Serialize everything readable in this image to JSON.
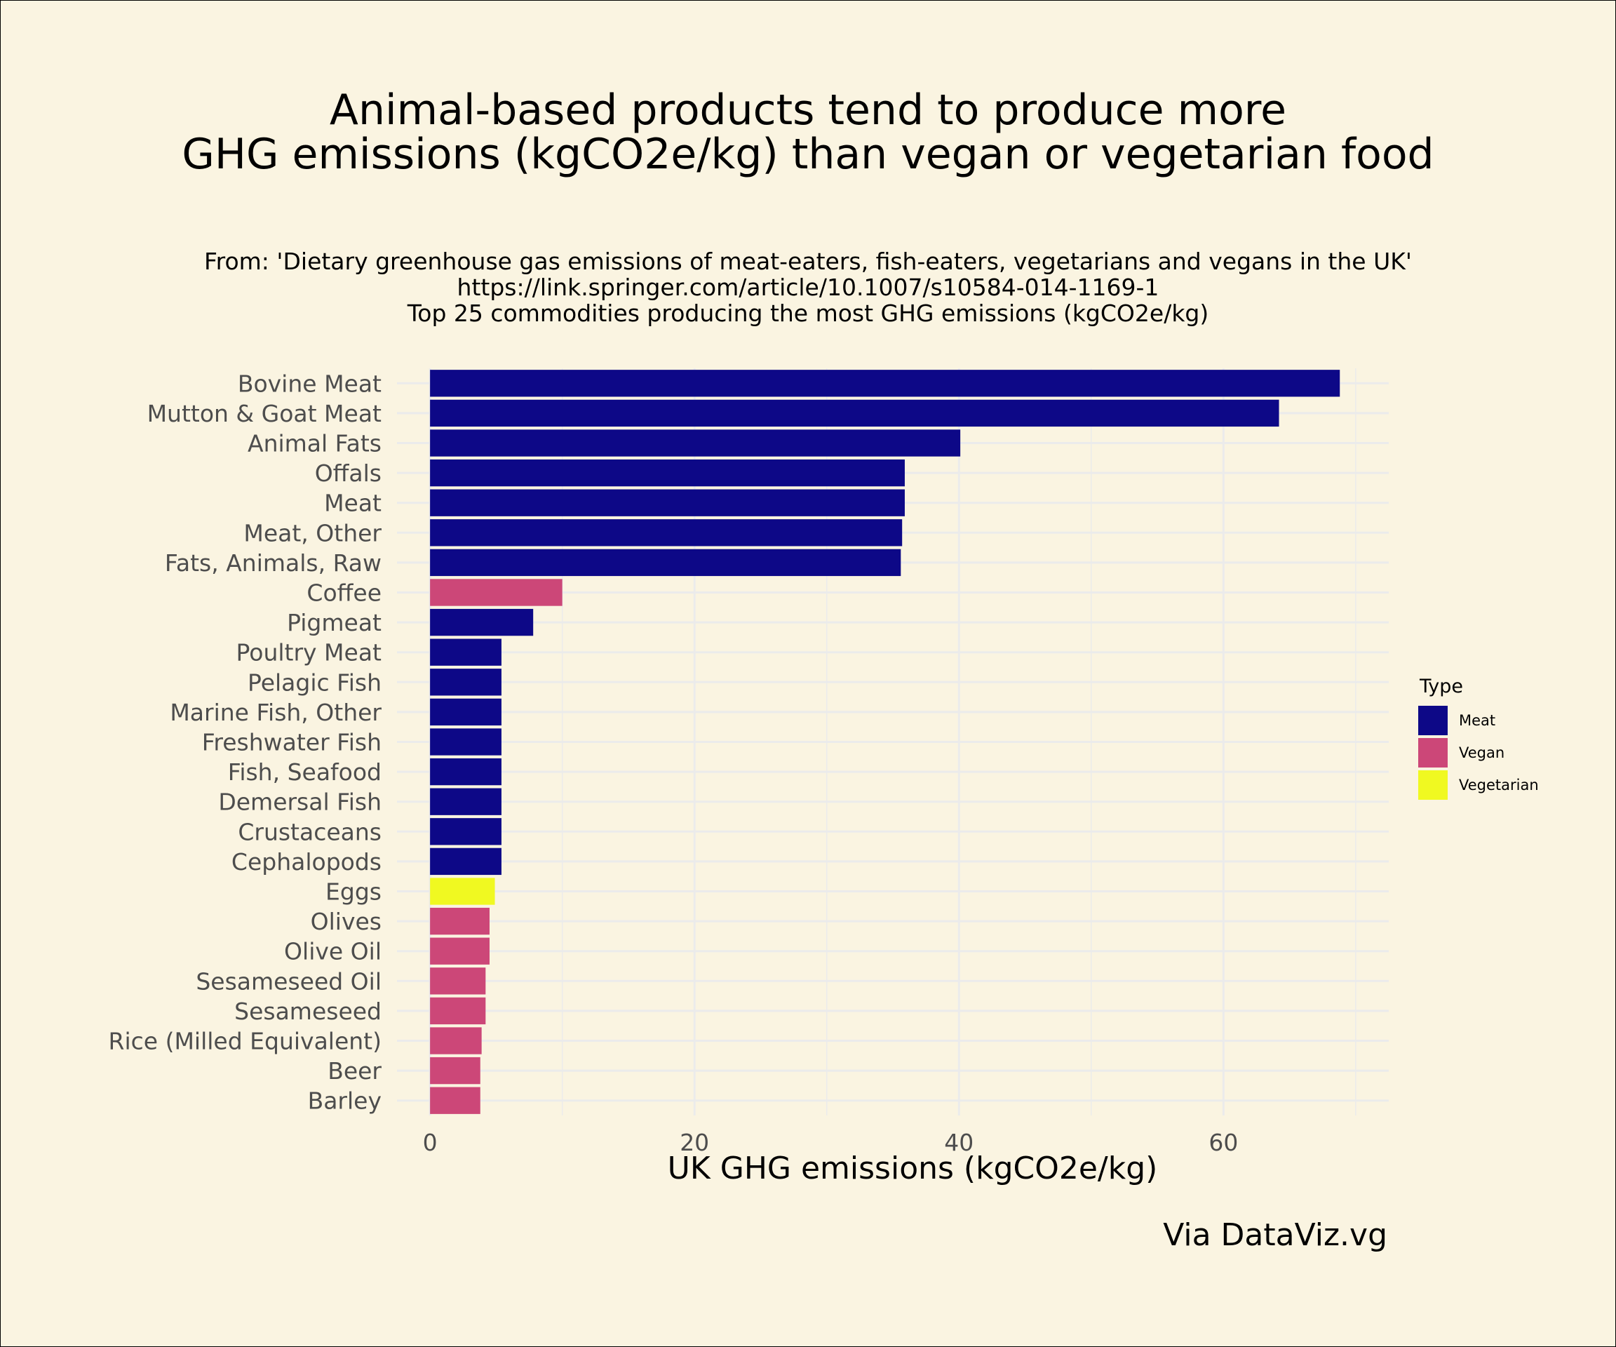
{
  "title_lines": [
    "Animal-based products tend to produce more",
    "GHG emissions (kgCO2e/kg) than vegan or vegetarian food"
  ],
  "subtitle_lines": [
    "From: 'Dietary greenhouse gas emissions of meat-eaters, fish-eaters, vegetarians and vegans in the UK'",
    "https://link.springer.com/article/10.1007/s10584-014-1169-1",
    "Top 25 commodities producing the most GHG emissions (kgCO2e/kg)"
  ],
  "caption": "Via DataViz.vg",
  "colors": {
    "background": "#faf4e1",
    "grid": "#ebebeb",
    "Meat": "#0d0887",
    "Vegan": "#cc4778",
    "Vegetarian": "#f0f921"
  },
  "chart_data": {
    "type": "bar",
    "orientation": "horizontal",
    "categories": [
      "Bovine Meat",
      "Mutton & Goat Meat",
      "Animal Fats",
      "Offals",
      "Meat",
      "Meat, Other",
      "Fats, Animals, Raw",
      "Coffee",
      "Pigmeat",
      "Poultry Meat",
      "Pelagic Fish",
      "Marine Fish, Other",
      "Freshwater Fish",
      "Fish, Seafood",
      "Demersal Fish",
      "Crustaceans",
      "Cephalopods",
      "Eggs",
      "Olives",
      "Olive Oil",
      "Sesameseed Oil",
      "Sesameseed",
      "Rice (Milled Equivalent)",
      "Beer",
      "Barley"
    ],
    "values": [
      68.8,
      64.2,
      40.1,
      35.9,
      35.9,
      35.7,
      35.6,
      10.0,
      7.8,
      5.4,
      5.4,
      5.4,
      5.4,
      5.4,
      5.4,
      5.4,
      5.4,
      4.9,
      4.5,
      4.5,
      4.2,
      4.2,
      3.9,
      3.8,
      3.8
    ],
    "types": [
      "Meat",
      "Meat",
      "Meat",
      "Meat",
      "Meat",
      "Meat",
      "Meat",
      "Vegan",
      "Meat",
      "Meat",
      "Meat",
      "Meat",
      "Meat",
      "Meat",
      "Meat",
      "Meat",
      "Meat",
      "Vegetarian",
      "Vegan",
      "Vegan",
      "Vegan",
      "Vegan",
      "Vegan",
      "Vegan",
      "Vegan"
    ],
    "xlabel": "UK GHG emissions (kgCO2e/kg)",
    "ylabel": "",
    "xlim": [
      -2.5,
      72.5
    ],
    "xticks": [
      0,
      20,
      40,
      60
    ],
    "grid": true,
    "legend": {
      "title": "Type",
      "position": "right",
      "entries": [
        "Meat",
        "Vegan",
        "Vegetarian"
      ]
    }
  }
}
